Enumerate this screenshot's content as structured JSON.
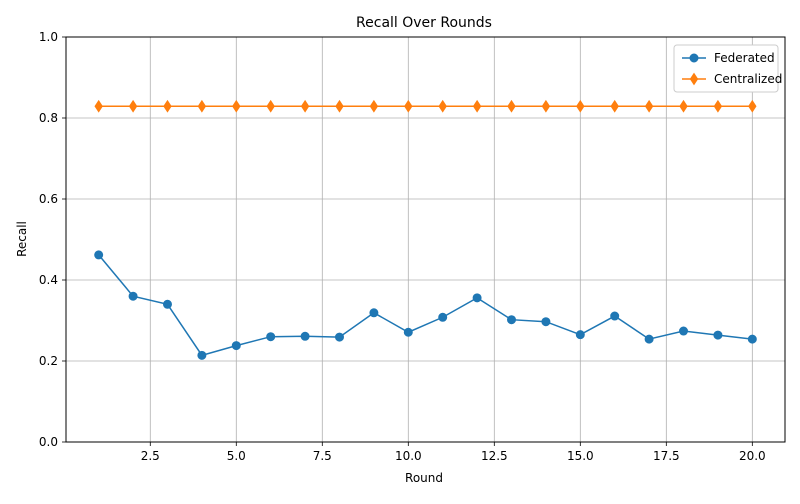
{
  "chart_data": {
    "type": "line",
    "title": "Recall Over Rounds",
    "xlabel": "Round",
    "ylabel": "Recall",
    "xlim": [
      0.05,
      20.95
    ],
    "ylim": [
      0.0,
      1.0
    ],
    "x_ticks": [
      2.5,
      5.0,
      7.5,
      10.0,
      12.5,
      15.0,
      17.5,
      20.0
    ],
    "x_tick_labels": [
      "2.5",
      "5.0",
      "7.5",
      "10.0",
      "12.5",
      "15.0",
      "17.5",
      "20.0"
    ],
    "y_ticks": [
      0.0,
      0.2,
      0.4,
      0.6,
      0.8,
      1.0
    ],
    "y_tick_labels": [
      "0.0",
      "0.2",
      "0.4",
      "0.6",
      "0.8",
      "1.0"
    ],
    "grid": true,
    "legend_position": "top-right",
    "x": [
      1,
      2,
      3,
      4,
      5,
      6,
      7,
      8,
      9,
      10,
      11,
      12,
      13,
      14,
      15,
      16,
      17,
      18,
      19,
      20
    ],
    "series": [
      {
        "name": "Federated",
        "color": "#1f77b4",
        "marker": "circle",
        "values": [
          0.462,
          0.36,
          0.34,
          0.214,
          0.238,
          0.26,
          0.261,
          0.259,
          0.319,
          0.271,
          0.308,
          0.356,
          0.302,
          0.297,
          0.265,
          0.311,
          0.254,
          0.274,
          0.264,
          0.254
        ]
      },
      {
        "name": "Centralized",
        "color": "#ff7f0e",
        "marker": "diamond",
        "values": [
          0.829,
          0.829,
          0.829,
          0.829,
          0.829,
          0.829,
          0.829,
          0.829,
          0.829,
          0.829,
          0.829,
          0.829,
          0.829,
          0.829,
          0.829,
          0.829,
          0.829,
          0.829,
          0.829,
          0.829
        ]
      }
    ]
  }
}
